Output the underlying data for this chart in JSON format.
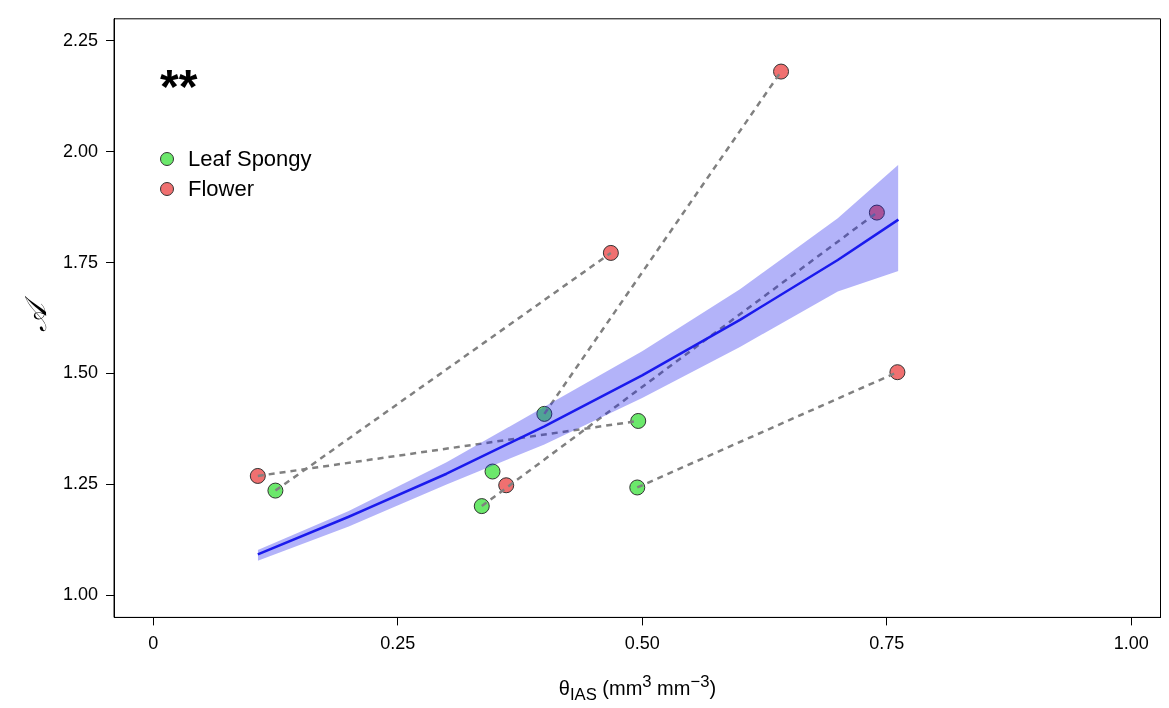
{
  "chart_data": {
    "type": "scatter",
    "xlabel": "θ$_{IAS}$ (mm$^{3}$ mm$^{−3}$)",
    "ylabel": "𝒜",
    "annotations": [
      "**"
    ],
    "xlim": [
      -0.04,
      1.03
    ],
    "xticks": [
      {
        "value": 0,
        "label": "0"
      },
      0.25,
      {
        "value": 0.5,
        "label": "0.50"
      },
      0.75,
      {
        "value": 1,
        "label": "1.00"
      }
    ],
    "ylim": [
      0.95,
      2.3
    ],
    "yticks": [
      {
        "value": 1,
        "label": "1.00"
      },
      1.25,
      {
        "value": 1.5,
        "label": "1.50"
      },
      1.75,
      {
        "value": 2,
        "label": "2.00"
      },
      2.25
    ],
    "grid": false,
    "legend": "top left",
    "marker": "circle",
    "series": [
      {
        "type": "line",
        "marker": "none",
        "color": "#1a1aee",
        "x": [
          0.107,
          0.2,
          0.3,
          0.4,
          0.5,
          0.6,
          0.7,
          0.762
        ],
        "values": [
          1.092,
          1.177,
          1.274,
          1.381,
          1.496,
          1.621,
          1.756,
          1.847
        ],
        "lower": [
          1.078,
          1.155,
          1.25,
          1.34,
          1.445,
          1.56,
          1.685,
          1.731
        ],
        "upper": [
          1.102,
          1.19,
          1.3,
          1.425,
          1.55,
          1.69,
          1.85,
          1.971
        ]
      },
      {
        "type": "line",
        "marker": "none",
        "line_style": "dashed",
        "color": "#808080",
        "x": [
          0.125,
          0.468
        ],
        "values": [
          1.236,
          1.772
        ]
      },
      {
        "type": "line",
        "marker": "none",
        "line_style": "dashed",
        "color": "#808080",
        "x": [
          0.107,
          0.496
        ],
        "values": [
          1.269,
          1.393
        ]
      },
      {
        "type": "line",
        "marker": "none",
        "line_style": "dashed",
        "color": "#808080",
        "x": [
          0.4,
          0.642
        ],
        "values": [
          1.409,
          2.181
        ]
      },
      {
        "type": "line",
        "marker": "none",
        "line_style": "dashed",
        "color": "#808080",
        "x": [
          0.336,
          0.74
        ],
        "values": [
          1.201,
          1.863
        ]
      },
      {
        "type": "line",
        "marker": "none",
        "line_style": "dashed",
        "color": "#808080",
        "x": [
          0.495,
          0.761
        ],
        "values": [
          1.243,
          1.503
        ]
      },
      {
        "name": "Leaf Spongy",
        "color": "#6be86b",
        "x": [
          0.125,
          0.336,
          0.347,
          0.4,
          0.496,
          0.495
        ],
        "values": [
          1.236,
          1.201,
          1.279,
          1.409,
          1.393,
          1.243
        ]
      },
      {
        "name": "Flower",
        "color": "#f07070",
        "x": [
          0.107,
          0.361,
          0.468,
          0.642,
          0.74,
          0.761
        ],
        "values": [
          1.269,
          1.248,
          1.772,
          2.181,
          1.863,
          1.503
        ]
      }
    ]
  }
}
